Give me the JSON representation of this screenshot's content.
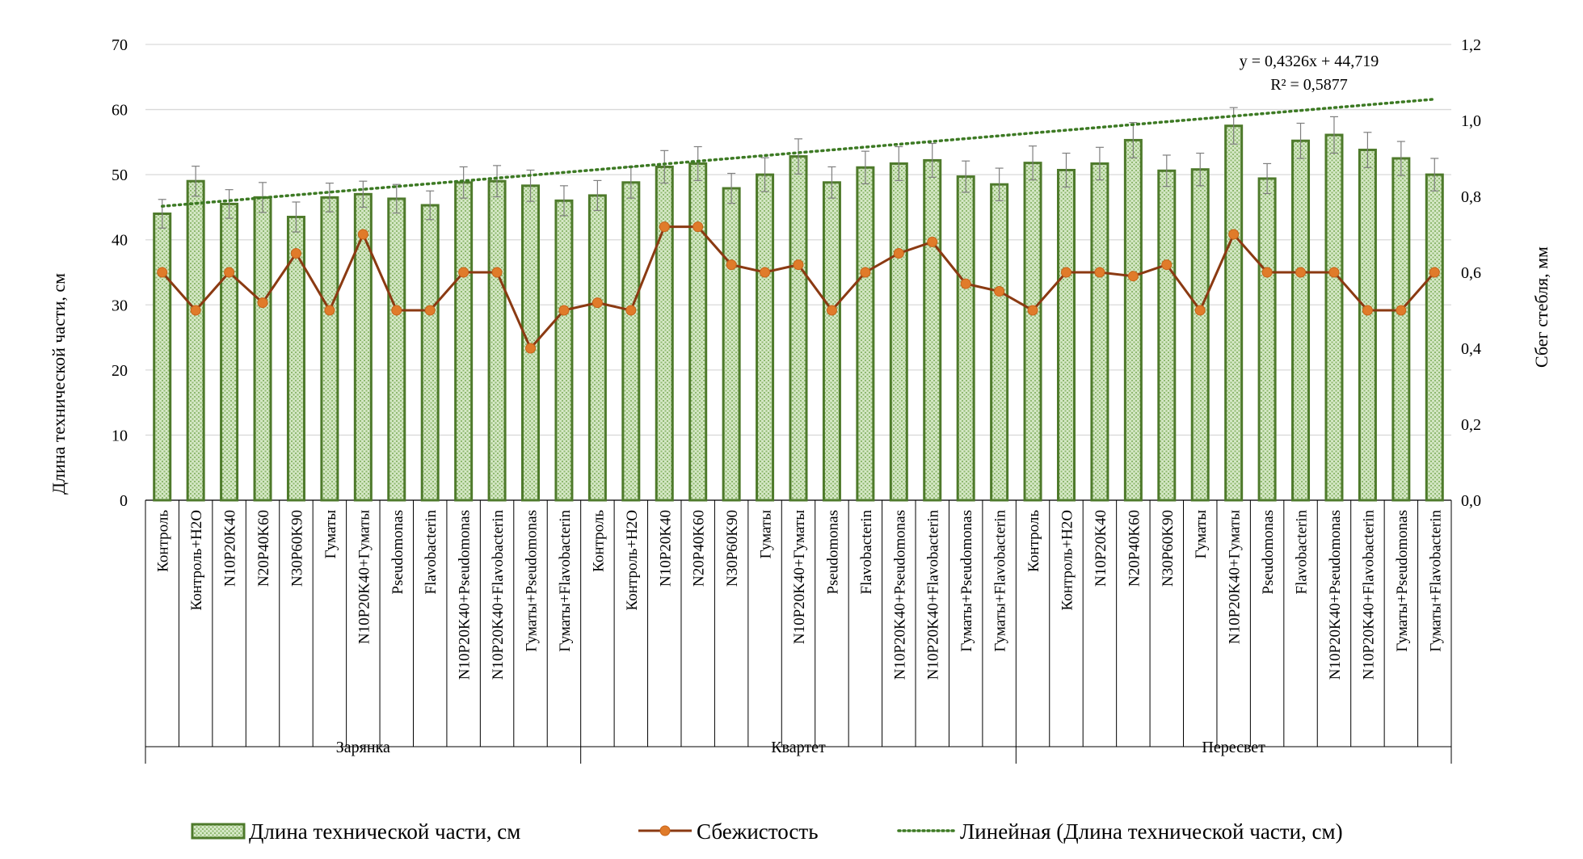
{
  "chart_data": {
    "type": "bar",
    "ylabel": "Длина технической части, см",
    "y2label": "Сбег стебля, мм",
    "ylim": [
      0,
      70
    ],
    "yticks": [
      "0",
      "10",
      "20",
      "30",
      "40",
      "50",
      "60",
      "70"
    ],
    "y2lim": [
      0,
      1.2
    ],
    "y2ticks": [
      "0,0",
      "0,2",
      "0,4",
      "0,6",
      "0,8",
      "1,0",
      "1,2"
    ],
    "grid": true,
    "legend_position": "bottom",
    "colors": {
      "bar_fill": "#c5dfb4",
      "bar_border": "#4e7a2b",
      "line": "#8b3a12",
      "marker": "#e07b2a",
      "trend": "#3d7a24"
    },
    "groups": [
      {
        "name": "Зарянка",
        "categories": [
          "Контроль",
          "Контроль+H2O",
          "N10P20K40",
          "N20P40K60",
          "N30P60K90",
          "Гуматы",
          "N10P20K40+Гуматы",
          "Pseudomonas",
          "Flavobacterin",
          "N10P20K40+Pseudomonas",
          "N10P20K40+Flavobacterin",
          "Гуматы+Pseudomonas",
          "Гуматы+Flavobacterin"
        ]
      },
      {
        "name": "Квартет",
        "categories": [
          "Контроль",
          "Контроль+H2O",
          "N10P20K40",
          "N20P40K60",
          "N30P60K90",
          "Гуматы",
          "N10P20K40+Гуматы",
          "Pseudomonas",
          "Flavobacterin",
          "N10P20K40+Pseudomonas",
          "N10P20K40+Flavobacterin",
          "Гуматы+Pseudomonas",
          "Гуматы+Flavobacterin"
        ]
      },
      {
        "name": "Пересвет",
        "categories": [
          "Контроль",
          "Контроль+H2O",
          "N10P20K40",
          "N20P40K60",
          "N30P60K90",
          "Гуматы",
          "N10P20K40+Гуматы",
          "Pseudomonas",
          "Flavobacterin",
          "N10P20K40+Pseudomonas",
          "N10P20K40+Flavobacterin",
          "Гуматы+Pseudomonas",
          "Гуматы+Flavobacterin"
        ]
      }
    ],
    "series": [
      {
        "name": "Длина технической части, см",
        "type": "bar",
        "axis": "left",
        "values": [
          44.0,
          49.0,
          45.5,
          46.5,
          43.5,
          46.5,
          47.0,
          46.3,
          45.3,
          48.8,
          49.0,
          48.3,
          46.0,
          46.8,
          48.8,
          51.2,
          51.7,
          47.9,
          50.0,
          52.8,
          48.8,
          51.1,
          51.7,
          52.2,
          49.7,
          48.5,
          51.8,
          50.7,
          51.7,
          55.3,
          50.6,
          50.8,
          57.5,
          49.4,
          55.2,
          56.1,
          53.8,
          52.5,
          50.0
        ],
        "errors": [
          2.2,
          2.3,
          2.2,
          2.3,
          2.3,
          2.2,
          2.0,
          2.2,
          2.2,
          2.4,
          2.4,
          2.4,
          2.3,
          2.3,
          2.4,
          2.5,
          2.6,
          2.3,
          2.6,
          2.7,
          2.4,
          2.5,
          2.6,
          2.6,
          2.4,
          2.5,
          2.6,
          2.6,
          2.5,
          2.7,
          2.4,
          2.5,
          2.8,
          2.3,
          2.7,
          2.8,
          2.7,
          2.6,
          2.5
        ]
      },
      {
        "name": "Сбежистость",
        "type": "line",
        "axis": "right",
        "values": [
          0.6,
          0.5,
          0.6,
          0.52,
          0.65,
          0.5,
          0.7,
          0.5,
          0.5,
          0.6,
          0.6,
          0.4,
          0.5,
          0.52,
          0.5,
          0.72,
          0.72,
          0.62,
          0.6,
          0.62,
          0.5,
          0.6,
          0.65,
          0.68,
          0.57,
          0.55,
          0.5,
          0.6,
          0.6,
          0.59,
          0.62,
          0.5,
          0.7,
          0.6,
          0.6,
          0.6,
          0.5,
          0.5,
          0.6
        ]
      }
    ],
    "trendline": {
      "name": "Линейная (Длина технической части, см)",
      "slope": 0.4326,
      "intercept": 44.719,
      "equation": "y = 0,4326x + 44,719",
      "r2": "R² = 0,5877"
    }
  }
}
